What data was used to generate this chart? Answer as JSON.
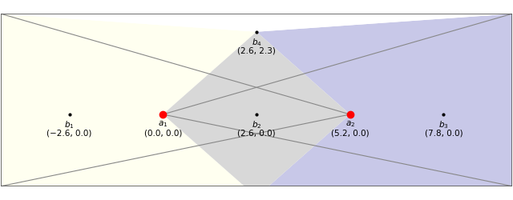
{
  "figsize": [
    6.4,
    2.5
  ],
  "dpi": 100,
  "xlim": [
    -4.5,
    9.7
  ],
  "ylim": [
    -2.0,
    2.8
  ],
  "bg_color": "#FFFFFF",
  "yellow_color": "#FFFFF0",
  "blue_color": "#C8C8E8",
  "diamond_color": "#D8D8D8",
  "white_color": "#FFFFFF",
  "line_color": "#888888",
  "border_color": "#555555",
  "a1": [
    0.0,
    0.0
  ],
  "a2": [
    5.2,
    0.0
  ],
  "b1": [
    -2.6,
    0.0
  ],
  "b2": [
    2.6,
    0.0
  ],
  "b3": [
    7.8,
    0.0
  ],
  "b4": [
    2.6,
    2.3
  ],
  "points_a": [
    [
      0.0,
      0.0
    ],
    [
      5.2,
      0.0
    ]
  ],
  "points_b": [
    [
      -2.6,
      0.0
    ],
    [
      2.6,
      0.0
    ],
    [
      7.8,
      0.0
    ],
    [
      2.6,
      2.3
    ]
  ],
  "labels_a": [
    "$a_1$",
    "$a_2$"
  ],
  "labels_b": [
    "$b_1$",
    "$b_2$",
    "$b_3$",
    "$b_4$"
  ],
  "coords_a": [
    "(0.0, 0.0)",
    "(5.2, 0.0)"
  ],
  "coords_b": [
    "(−2.6, 0.0)",
    "(2.6, 0.0)",
    "(7.8, 0.0)",
    "(2.6, 2.3)"
  ],
  "font_size": 7.5
}
